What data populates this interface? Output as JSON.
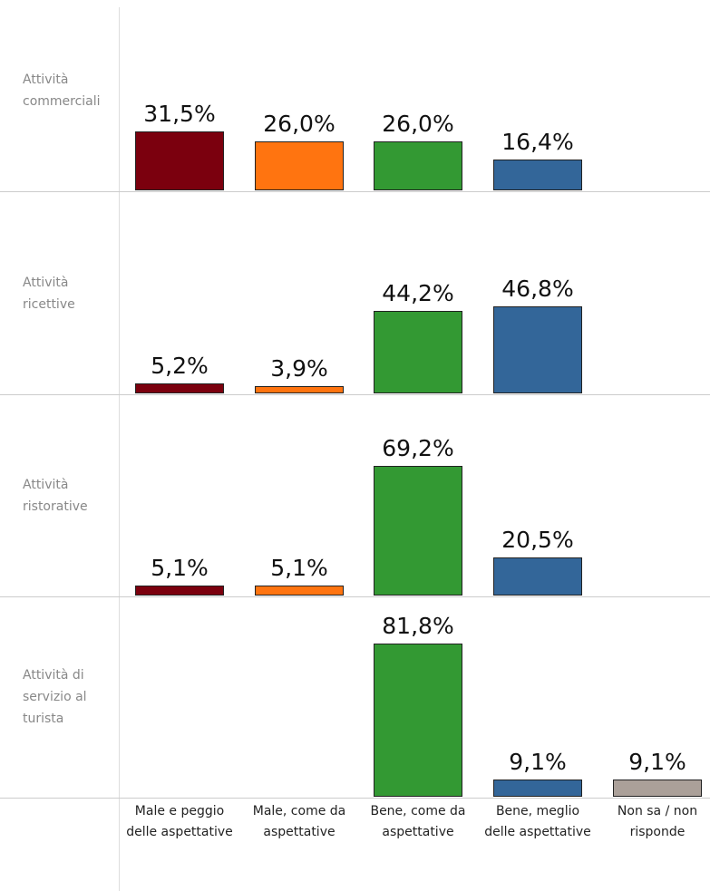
{
  "chart_data": {
    "type": "bar",
    "categories": [
      "Male e peggio delle aspettative",
      "Male, come da aspettative",
      "Bene, come da aspettative",
      "Bene, meglio delle aspettative",
      "Non sa / non risponde"
    ],
    "colors": [
      "#7b000e",
      "#ff7410",
      "#339933",
      "#336699",
      "#aba099"
    ],
    "ylim": [
      0,
      100
    ],
    "panels": [
      {
        "name": "Attività commerciali",
        "values": [
          31.5,
          26.0,
          26.0,
          16.4,
          null
        ],
        "value_labels": [
          "31,5%",
          "26,0%",
          "26,0%",
          "16,4%",
          null
        ]
      },
      {
        "name": "Attività ricettive",
        "values": [
          5.2,
          3.9,
          44.2,
          46.8,
          null
        ],
        "value_labels": [
          "5,2%",
          "3,9%",
          "44,2%",
          "46,8%",
          null
        ]
      },
      {
        "name": "Attività ristorative",
        "values": [
          5.1,
          5.1,
          69.2,
          20.5,
          null
        ],
        "value_labels": [
          "5,1%",
          "5,1%",
          "69,2%",
          "20,5%",
          null
        ]
      },
      {
        "name": "Attività di servizio al turista",
        "values": [
          null,
          null,
          81.8,
          9.1,
          9.1
        ],
        "value_labels": [
          null,
          null,
          "81,8%",
          "9,1%",
          "9,1%"
        ]
      }
    ]
  }
}
